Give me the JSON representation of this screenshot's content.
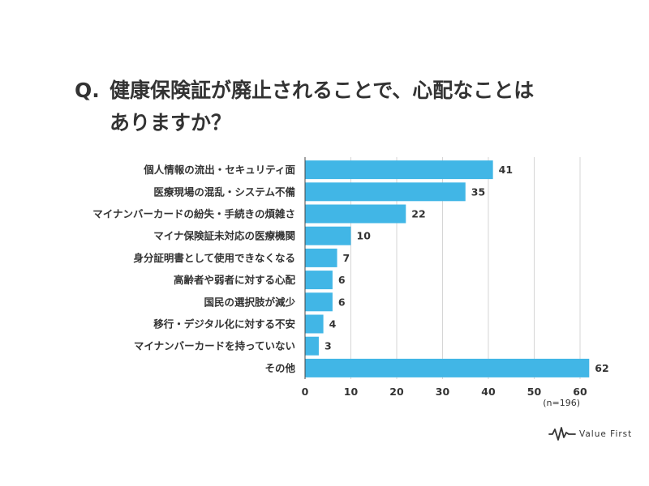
{
  "title": {
    "q_label": "Q.",
    "line1": "健康保険証が廃止されることで、心配なことは",
    "line2": "ありますか？"
  },
  "chart_data": {
    "type": "bar",
    "orientation": "horizontal",
    "categories": [
      "個人情報の流出・セキュリティ面",
      "医療現場の混乱・システム不備",
      "マイナンバーカードの紛失・手続きの煩雑さ",
      "マイナ保険証未対応の医療機関",
      "身分証明書として使用できなくなる",
      "高齢者や弱者に対する心配",
      "国民の選択肢が減少",
      "移行・デジタル化に対する不安",
      "マイナンバーカードを持っていない",
      "その他"
    ],
    "values": [
      41,
      35,
      22,
      10,
      7,
      6,
      6,
      4,
      3,
      62
    ],
    "xlim": [
      0,
      62
    ],
    "xticks": [
      0,
      10,
      20,
      30,
      40,
      50,
      60
    ],
    "grid": true,
    "sample_note": "(n=196)",
    "bar_color": "#41b6e6"
  },
  "brand": {
    "name": "Value First"
  }
}
